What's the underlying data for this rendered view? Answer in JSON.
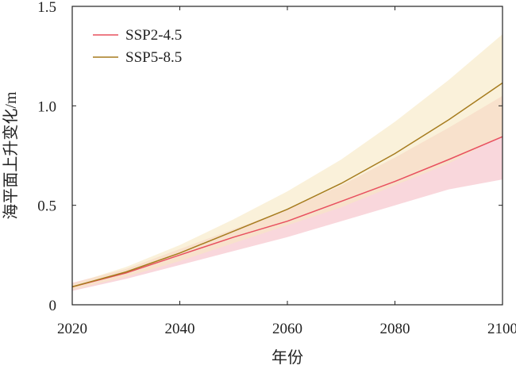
{
  "chart_data": {
    "type": "line",
    "title": "",
    "xlabel": "年份",
    "ylabel": "海平面上升变化/m",
    "xlim": [
      2020,
      2100
    ],
    "ylim": [
      0,
      1.5
    ],
    "xticks": [
      "2020",
      "2040",
      "2060",
      "2080",
      "2100"
    ],
    "yticks": [
      "0",
      "0.5",
      "1.0",
      "1.5"
    ],
    "grid": false,
    "legend_position": "top-left",
    "x": [
      2020,
      2030,
      2040,
      2050,
      2060,
      2070,
      2080,
      2090,
      2100
    ],
    "series": [
      {
        "name": "SSP2-4.5",
        "color": "#e8505f",
        "band_color": "#f7c9d0",
        "values": [
          0.09,
          0.16,
          0.25,
          0.34,
          0.42,
          0.52,
          0.62,
          0.73,
          0.845
        ],
        "lower": [
          0.07,
          0.13,
          0.2,
          0.27,
          0.34,
          0.42,
          0.5,
          0.58,
          0.63
        ],
        "upper": [
          0.11,
          0.18,
          0.28,
          0.38,
          0.48,
          0.6,
          0.74,
          0.89,
          1.05
        ]
      },
      {
        "name": "SSP5-8.5",
        "color": "#a67c1e",
        "band_color": "#f7e7c2",
        "values": [
          0.09,
          0.165,
          0.26,
          0.37,
          0.48,
          0.61,
          0.76,
          0.93,
          1.115
        ],
        "lower": [
          0.075,
          0.14,
          0.22,
          0.31,
          0.4,
          0.49,
          0.6,
          0.71,
          0.85
        ],
        "upper": [
          0.105,
          0.19,
          0.3,
          0.43,
          0.57,
          0.73,
          0.92,
          1.13,
          1.36
        ]
      }
    ]
  }
}
